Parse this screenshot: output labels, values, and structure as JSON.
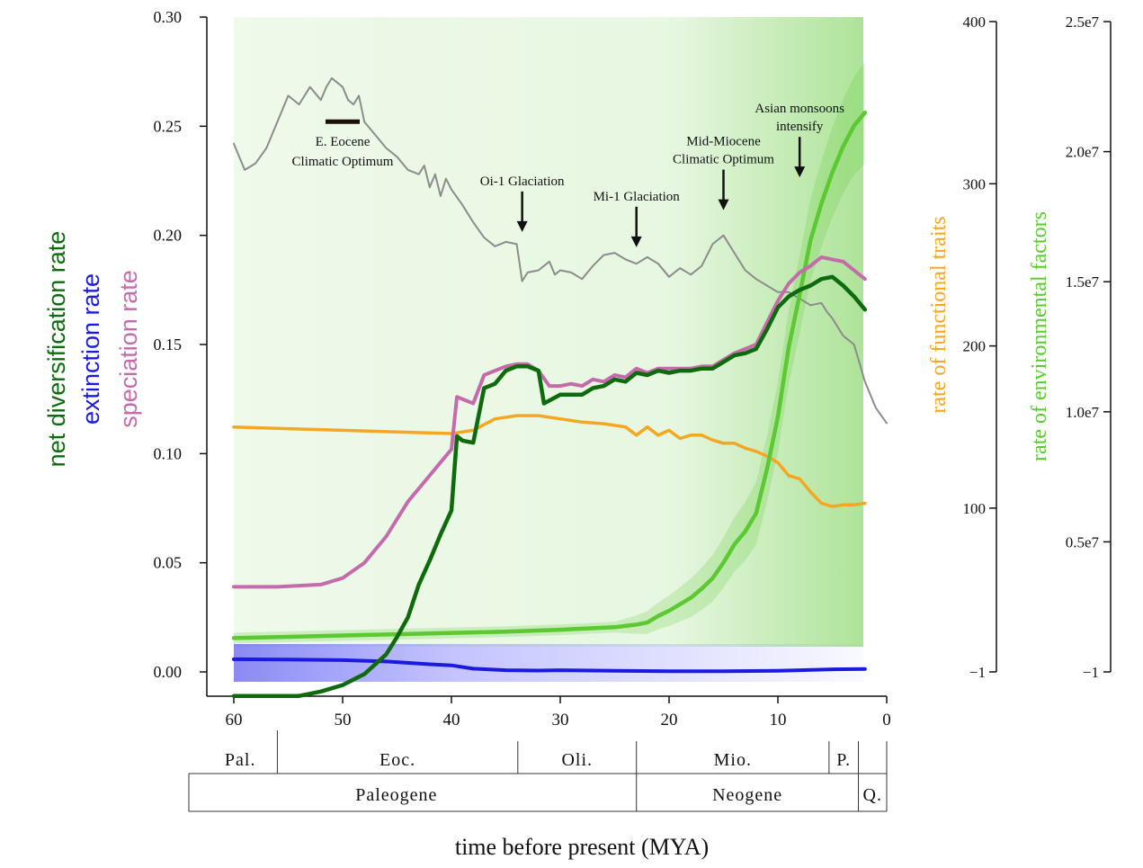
{
  "chart_data": {
    "type": "line",
    "xlabel": "time before present (MYA)",
    "x_ticks": [
      "60",
      "50",
      "40",
      "30",
      "20",
      "10",
      "0"
    ],
    "xlim": [
      60,
      0
    ],
    "left_axis": {
      "labels": [
        "net diversification rate",
        "extinction rate",
        "speciation rate"
      ],
      "ticks": [
        "0.30",
        "0.25",
        "0.20",
        "0.15",
        "0.10",
        "0.05",
        "0.00"
      ],
      "ylim": [
        -0.011,
        0.3
      ]
    },
    "right_axis_traits": {
      "label": "rate of functional traits",
      "ticks": [
        "400",
        "300",
        "200",
        "100",
        "−1"
      ],
      "ylim": [
        -1,
        400
      ]
    },
    "right_axis_env": {
      "label": "rate of environmental factors",
      "ticks": [
        "2.5e7",
        "2.0e7",
        "1.5e7",
        "1.0e7",
        "0.5e7",
        "−1"
      ],
      "ylim": [
        -1,
        25000000
      ]
    },
    "colors": {
      "speciation": "#c56bab",
      "extinction": "#1a1ae0",
      "net_diversification": "#0d6b0d",
      "functional_traits": "#f5a623",
      "environmental": "#5cc832",
      "temperature": "#8c8c8c"
    },
    "series": [
      {
        "name": "speciation rate",
        "axis": "left",
        "x": [
          60,
          56,
          52,
          50,
          48,
          46,
          44,
          42,
          40,
          39.5,
          38,
          37,
          36,
          35,
          34,
          33,
          32,
          31,
          30,
          29,
          28,
          27,
          26,
          25,
          24,
          23,
          22,
          21,
          20,
          19,
          18,
          17,
          16,
          15,
          14,
          13,
          12,
          11,
          10,
          9,
          8,
          7,
          6,
          5,
          4,
          3,
          2
        ],
        "y": [
          0.039,
          0.039,
          0.04,
          0.043,
          0.05,
          0.062,
          0.078,
          0.09,
          0.102,
          0.126,
          0.123,
          0.136,
          0.138,
          0.14,
          0.141,
          0.141,
          0.138,
          0.131,
          0.131,
          0.132,
          0.131,
          0.134,
          0.133,
          0.136,
          0.135,
          0.139,
          0.137,
          0.139,
          0.139,
          0.139,
          0.139,
          0.14,
          0.14,
          0.143,
          0.146,
          0.148,
          0.15,
          0.16,
          0.17,
          0.178,
          0.183,
          0.186,
          0.19,
          0.189,
          0.188,
          0.184,
          0.18
        ]
      },
      {
        "name": "extinction rate",
        "axis": "left",
        "x": [
          60,
          55,
          50,
          46,
          42,
          40,
          38,
          35,
          32,
          30,
          25,
          20,
          15,
          10,
          5,
          2
        ],
        "y": [
          0.0058,
          0.0057,
          0.0054,
          0.0048,
          0.0035,
          0.003,
          0.0015,
          0.0008,
          0.0006,
          0.0008,
          0.0005,
          0.0003,
          0.0003,
          0.0005,
          0.0012,
          0.0013
        ]
      },
      {
        "name": "net diversification rate",
        "axis": "left",
        "x": [
          60,
          54,
          52,
          50,
          48,
          46,
          45,
          44,
          43,
          42,
          41,
          40,
          39.5,
          39,
          38,
          37,
          36,
          35,
          34,
          33,
          32,
          31.5,
          30,
          29,
          28,
          27,
          26,
          25,
          24,
          23,
          22,
          21,
          20,
          19,
          18,
          17,
          16,
          15,
          14,
          13,
          12,
          11,
          10,
          9,
          8,
          7,
          6,
          5,
          4,
          3,
          2
        ],
        "y": [
          -0.011,
          -0.011,
          -0.009,
          -0.006,
          -0.001,
          0.008,
          0.016,
          0.025,
          0.04,
          0.051,
          0.063,
          0.074,
          0.108,
          0.106,
          0.105,
          0.13,
          0.132,
          0.138,
          0.14,
          0.14,
          0.138,
          0.123,
          0.127,
          0.127,
          0.127,
          0.13,
          0.131,
          0.134,
          0.133,
          0.137,
          0.136,
          0.138,
          0.137,
          0.138,
          0.138,
          0.139,
          0.139,
          0.142,
          0.145,
          0.146,
          0.148,
          0.157,
          0.167,
          0.172,
          0.175,
          0.177,
          0.18,
          0.181,
          0.177,
          0.172,
          0.166
        ]
      },
      {
        "name": "rate of functional traits",
        "axis": "right_traits",
        "x": [
          60,
          55,
          50,
          45,
          40,
          38,
          36,
          34,
          32,
          30,
          28,
          26,
          24,
          23,
          22,
          21,
          20,
          19,
          18,
          17,
          16,
          15,
          14,
          13,
          12,
          11,
          10,
          9,
          8,
          7,
          6,
          5,
          4,
          3,
          2
        ],
        "y": [
          150,
          149,
          148,
          147,
          146,
          148,
          155,
          157,
          157,
          155,
          153,
          152,
          150,
          145,
          150,
          145,
          148,
          143,
          145,
          145,
          142,
          140,
          140,
          137,
          135,
          132,
          128,
          120,
          118,
          110,
          103,
          101,
          102,
          102,
          103
        ]
      },
      {
        "name": "rate of environmental factors",
        "axis": "right_env",
        "x": [
          60,
          55,
          50,
          45,
          40,
          35,
          30,
          25,
          23,
          22,
          21,
          20,
          19,
          18,
          17,
          16,
          15,
          14,
          13,
          12,
          11,
          10,
          9,
          8,
          7,
          6,
          5,
          4,
          3,
          2
        ],
        "y": [
          1300000,
          1350000,
          1400000,
          1450000,
          1500000,
          1550000,
          1620000,
          1720000,
          1820000,
          1900000,
          2150000,
          2350000,
          2600000,
          2850000,
          3200000,
          3600000,
          4200000,
          4900000,
          5400000,
          6100000,
          7800000,
          9800000,
          12500000,
          14500000,
          16600000,
          18000000,
          19200000,
          20200000,
          21000000,
          21500000
        ]
      },
      {
        "name": "temperature",
        "axis": "left",
        "x": [
          60,
          59,
          58,
          57,
          56,
          55,
          54,
          53,
          52,
          51.5,
          51,
          50,
          49.5,
          49,
          48.5,
          48,
          47,
          46,
          45,
          44,
          43,
          42.5,
          42,
          41.5,
          41,
          40.5,
          40,
          39,
          38,
          37,
          36,
          35,
          34,
          33.5,
          33,
          32,
          31,
          30.5,
          30,
          29,
          28,
          27,
          26,
          25,
          24,
          23,
          22,
          21,
          20,
          19,
          18,
          17,
          16,
          15,
          14,
          13,
          12,
          11,
          10,
          9,
          8,
          7,
          6,
          5.5,
          5,
          4,
          3,
          2,
          1,
          0
        ],
        "y": [
          0.242,
          0.23,
          0.233,
          0.24,
          0.252,
          0.264,
          0.26,
          0.268,
          0.262,
          0.268,
          0.272,
          0.268,
          0.262,
          0.26,
          0.264,
          0.252,
          0.246,
          0.24,
          0.236,
          0.23,
          0.228,
          0.232,
          0.222,
          0.228,
          0.218,
          0.226,
          0.221,
          0.214,
          0.206,
          0.199,
          0.195,
          0.197,
          0.196,
          0.179,
          0.183,
          0.184,
          0.188,
          0.182,
          0.184,
          0.183,
          0.18,
          0.186,
          0.191,
          0.192,
          0.189,
          0.187,
          0.19,
          0.187,
          0.181,
          0.185,
          0.182,
          0.186,
          0.196,
          0.2,
          0.192,
          0.184,
          0.18,
          0.177,
          0.174,
          0.174,
          0.171,
          0.168,
          0.169,
          0.165,
          0.162,
          0.154,
          0.15,
          0.133,
          0.121,
          0.114
        ]
      }
    ],
    "annotations": [
      {
        "text_lines": [
          "E. Eocene",
          "Climatic Optimum"
        ],
        "x": 50,
        "y": 0.255,
        "marker": "bar"
      },
      {
        "text_lines": [
          "Oi-1 Glaciation"
        ],
        "x": 33.5,
        "y": 0.223,
        "marker": "arrow"
      },
      {
        "text_lines": [
          "Mi-1 Glaciation"
        ],
        "x": 23,
        "y": 0.216,
        "marker": "arrow"
      },
      {
        "text_lines": [
          "Mid-Miocene",
          "Climatic Optimum"
        ],
        "x": 15,
        "y": 0.233,
        "marker": "arrow"
      },
      {
        "text_lines": [
          "Asian monsoons",
          "intensify"
        ],
        "x": 8,
        "y": 0.248,
        "marker": "arrow"
      }
    ],
    "epochs": [
      {
        "label": "Pal.",
        "from": 60,
        "to": 56
      },
      {
        "label": "Eoc.",
        "from": 56,
        "to": 33.9
      },
      {
        "label": "Oli.",
        "from": 33.9,
        "to": 23
      },
      {
        "label": "Mio.",
        "from": 23,
        "to": 5.3
      },
      {
        "label": "P.",
        "from": 5.3,
        "to": 2.6
      },
      {
        "label": "",
        "from": 2.6,
        "to": 0
      }
    ],
    "periods": [
      {
        "label": "Paleogene",
        "from": 60,
        "to": 23
      },
      {
        "label": "Neogene",
        "from": 23,
        "to": 2.6
      },
      {
        "label": "Q.",
        "from": 2.6,
        "to": 0
      }
    ],
    "grid": false,
    "legend": "none"
  }
}
